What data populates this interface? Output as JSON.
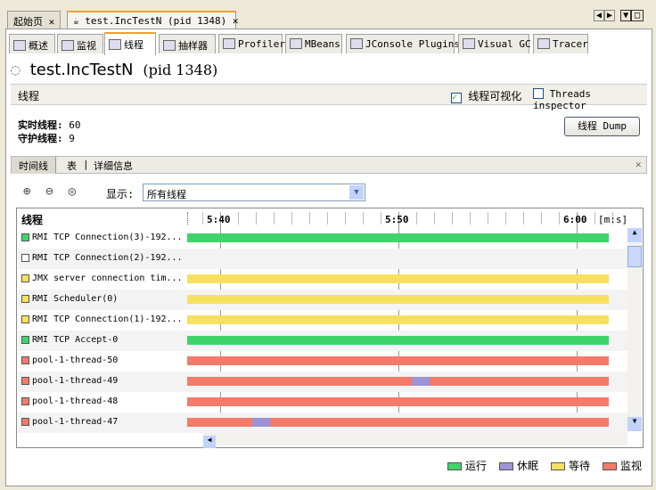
{
  "doc_tabs": [
    {
      "label": "起始页"
    },
    {
      "label": "test.IncTestN (pid 1348)"
    }
  ],
  "sub_tabs": [
    {
      "label": "概述",
      "icon": "overview-icon"
    },
    {
      "label": "监视",
      "icon": "monitor-icon"
    },
    {
      "label": "线程",
      "icon": "threads-icon"
    },
    {
      "label": "抽样器",
      "icon": "sampler-icon"
    },
    {
      "label": "Profiler",
      "icon": "profiler-icon"
    },
    {
      "label": "MBeans",
      "icon": "mbeans-icon"
    },
    {
      "label": "JConsole Plugins",
      "icon": "jconsole-icon"
    },
    {
      "label": "Visual GC",
      "icon": "visualgc-icon"
    },
    {
      "label": "Tracer",
      "icon": "tracer-icon"
    }
  ],
  "app_title": "test.IncTestN",
  "app_pid": "(pid 1348)",
  "section": {
    "title": "线程",
    "visualize_label": "线程可视化",
    "visualize_checked": true,
    "inspector_label": "Threads inspector",
    "inspector_checked": false
  },
  "stats": {
    "live_label": "实时线程:",
    "live_value": "60",
    "daemon_label": "守护线程:",
    "daemon_value": "9"
  },
  "dump_button": "线程 Dump",
  "view_tabs": [
    {
      "label": "时间线"
    },
    {
      "label": "表"
    },
    {
      "label": "详细信息"
    }
  ],
  "display_label": "显示:",
  "display_value": "所有线程",
  "timeline": {
    "column_header": "线程",
    "ticks": [
      "5:40",
      "5:50",
      "6:00"
    ],
    "unit": "[m:s]",
    "rows": [
      {
        "name": "RMI TCP Connection(3)-192...",
        "state": "running",
        "segments": []
      },
      {
        "name": "RMI TCP Connection(2)-192...",
        "state": "none",
        "segments": []
      },
      {
        "name": "JMX server connection tim...",
        "state": "waiting",
        "segments": []
      },
      {
        "name": "RMI Scheduler(0)",
        "state": "waiting",
        "segments": []
      },
      {
        "name": "RMI TCP Connection(1)-192...",
        "state": "waiting",
        "segments": []
      },
      {
        "name": "RMI TCP Accept-0",
        "state": "running",
        "segments": []
      },
      {
        "name": "pool-1-thread-50",
        "state": "monitor",
        "segments": []
      },
      {
        "name": "pool-1-thread-49",
        "state": "monitor",
        "segments": [
          {
            "state": "sleeping",
            "from": "5:50.75",
            "to": "5:51.75"
          }
        ]
      },
      {
        "name": "pool-1-thread-48",
        "state": "monitor",
        "segments": []
      },
      {
        "name": "pool-1-thread-47",
        "state": "monitor",
        "segments": [
          {
            "state": "sleeping",
            "from": "5:41.8",
            "to": "5:42.8"
          }
        ]
      }
    ]
  },
  "legend": [
    {
      "label": "运行",
      "color": "#3fd46a"
    },
    {
      "label": "休眠",
      "color": "#9d94d8"
    },
    {
      "label": "等待",
      "color": "#f7e060"
    },
    {
      "label": "监视",
      "color": "#f47a6a"
    }
  ],
  "colors": {
    "running": "#3fd46a",
    "sleeping": "#9d94d8",
    "waiting": "#f7e060",
    "monitor": "#f47a6a",
    "none": "#ffffff"
  }
}
